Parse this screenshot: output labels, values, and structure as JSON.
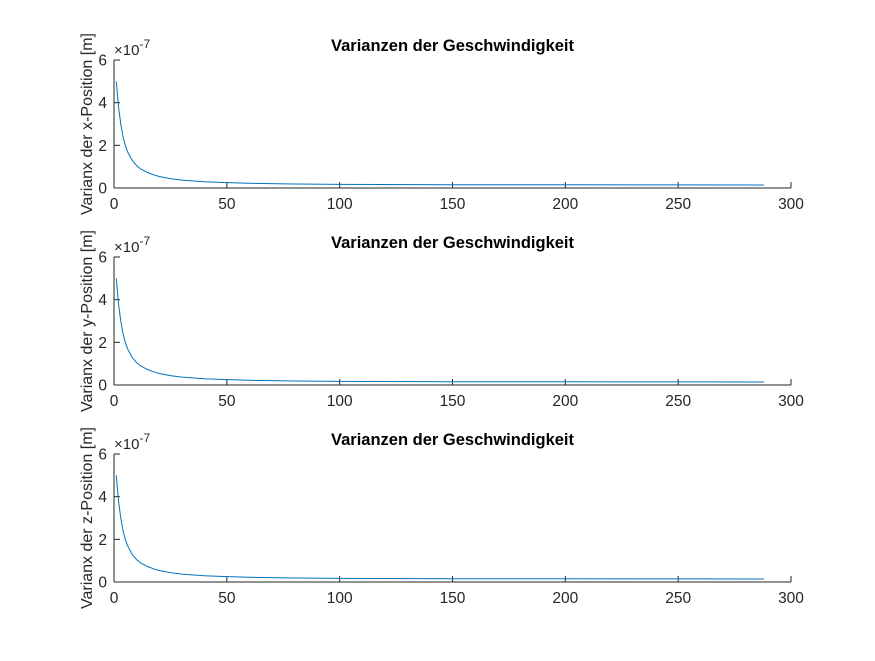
{
  "chart_data": [
    {
      "type": "line",
      "title": "Varianzen der Geschwindigkeit",
      "xlabel": "",
      "ylabel": "Varianx der x-Position [m]",
      "xlim": [
        0,
        300
      ],
      "ylim": [
        0,
        6e-07
      ],
      "xticks": [
        "0",
        "50",
        "100",
        "150",
        "200",
        "250",
        "300"
      ],
      "yticks": [
        "0",
        "2",
        "4",
        "6"
      ],
      "y_exponent_base": "×10",
      "y_exponent_power": "-7",
      "grid": false,
      "series": [
        {
          "color": "#0072BD",
          "x": [
            1,
            2,
            3,
            4,
            5,
            6,
            7,
            8,
            10,
            12,
            15,
            18,
            20,
            25,
            30,
            40,
            50,
            60,
            80,
            100,
            150,
            200,
            250,
            288
          ],
          "y": [
            5e-07,
            3.8e-07,
            3e-07,
            2.4e-07,
            2e-07,
            1.7e-07,
            1.5e-07,
            1.3e-07,
            1.05e-07,
            8.8e-08,
            7.2e-08,
            6e-08,
            5.4e-08,
            4.4e-08,
            3.7e-08,
            2.9e-08,
            2.5e-08,
            2.2e-08,
            1.9e-08,
            1.7e-08,
            1.55e-08,
            1.5e-08,
            1.45e-08,
            1.4e-08
          ]
        }
      ]
    },
    {
      "type": "line",
      "title": "Varianzen der Geschwindigkeit",
      "xlabel": "",
      "ylabel": "Varianx der y-Position [m]",
      "xlim": [
        0,
        300
      ],
      "ylim": [
        0,
        6e-07
      ],
      "xticks": [
        "0",
        "50",
        "100",
        "150",
        "200",
        "250",
        "300"
      ],
      "yticks": [
        "0",
        "2",
        "4",
        "6"
      ],
      "y_exponent_base": "×10",
      "y_exponent_power": "-7",
      "grid": false,
      "series": [
        {
          "color": "#0072BD",
          "x": [
            1,
            2,
            3,
            4,
            5,
            6,
            7,
            8,
            10,
            12,
            15,
            18,
            20,
            25,
            30,
            40,
            50,
            60,
            80,
            100,
            150,
            200,
            250,
            288
          ],
          "y": [
            5e-07,
            3.8e-07,
            3e-07,
            2.4e-07,
            2e-07,
            1.7e-07,
            1.5e-07,
            1.3e-07,
            1.05e-07,
            8.8e-08,
            7.2e-08,
            6e-08,
            5.4e-08,
            4.4e-08,
            3.7e-08,
            2.9e-08,
            2.5e-08,
            2.2e-08,
            1.9e-08,
            1.7e-08,
            1.55e-08,
            1.5e-08,
            1.45e-08,
            1.4e-08
          ]
        }
      ]
    },
    {
      "type": "line",
      "title": "Varianzen der Geschwindigkeit",
      "xlabel": "",
      "ylabel": "Varianx der z-Position [m]",
      "xlim": [
        0,
        300
      ],
      "ylim": [
        0,
        6e-07
      ],
      "xticks": [
        "0",
        "50",
        "100",
        "150",
        "200",
        "250",
        "300"
      ],
      "yticks": [
        "0",
        "2",
        "4",
        "6"
      ],
      "y_exponent_base": "×10",
      "y_exponent_power": "-7",
      "grid": false,
      "series": [
        {
          "color": "#0072BD",
          "x": [
            1,
            2,
            3,
            4,
            5,
            6,
            7,
            8,
            10,
            12,
            15,
            18,
            20,
            25,
            30,
            40,
            50,
            60,
            80,
            100,
            150,
            200,
            250,
            288
          ],
          "y": [
            5e-07,
            3.8e-07,
            3e-07,
            2.4e-07,
            2e-07,
            1.7e-07,
            1.5e-07,
            1.3e-07,
            1.05e-07,
            8.8e-08,
            7.2e-08,
            6e-08,
            5.4e-08,
            4.4e-08,
            3.7e-08,
            2.9e-08,
            2.5e-08,
            2.2e-08,
            1.9e-08,
            1.7e-08,
            1.55e-08,
            1.5e-08,
            1.45e-08,
            1.4e-08
          ]
        }
      ]
    }
  ]
}
